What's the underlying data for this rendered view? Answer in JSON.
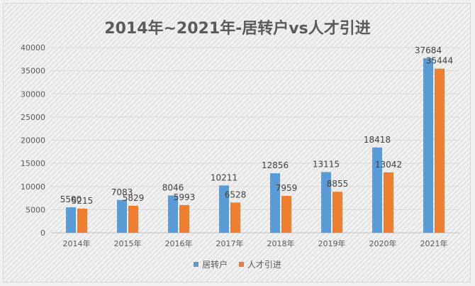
{
  "chart_data": {
    "type": "bar",
    "title": "2014年~2021年-居转户vs人才引进",
    "categories": [
      "2014年",
      "2015年",
      "2016年",
      "2017年",
      "2018年",
      "2019年",
      "2020年",
      "2021年"
    ],
    "series": [
      {
        "name": "居转户",
        "color": "#5b9bd5",
        "values": [
          5500,
          7083,
          8046,
          10211,
          12856,
          13115,
          18418,
          37684
        ]
      },
      {
        "name": "人才引进",
        "color": "#ed7d31",
        "values": [
          5215,
          5829,
          5993,
          6528,
          7959,
          8855,
          13042,
          35444
        ]
      }
    ],
    "ylim": [
      0,
      40000
    ],
    "yticks": [
      0,
      5000,
      10000,
      15000,
      20000,
      25000,
      30000,
      35000,
      40000
    ],
    "grid": true,
    "legend_position": "bottom"
  }
}
